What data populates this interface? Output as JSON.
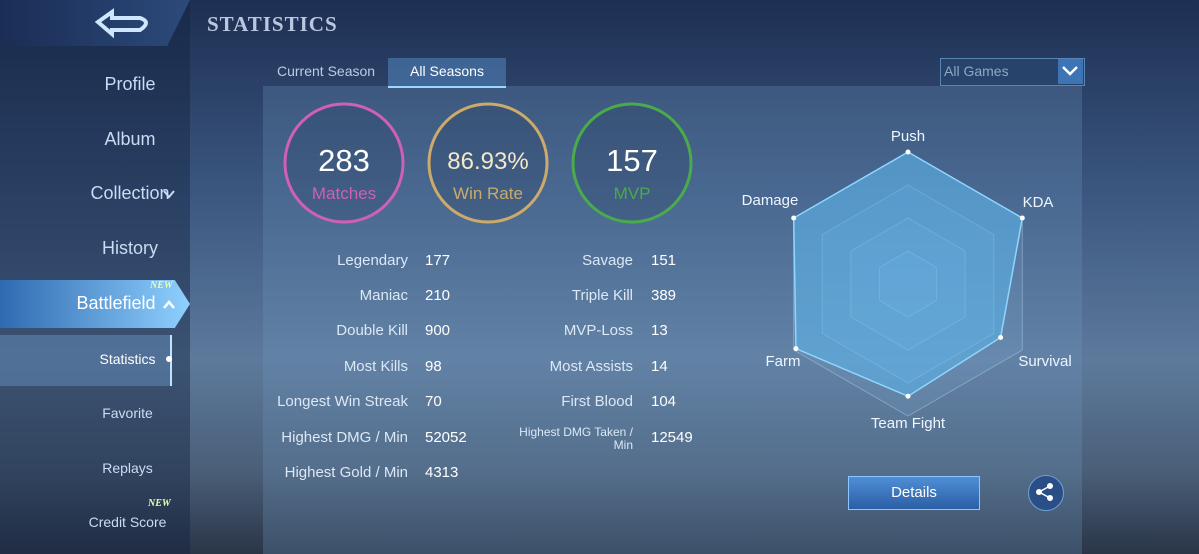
{
  "header": {
    "title": "STATISTICS"
  },
  "sidebar": {
    "items": [
      "Profile",
      "Album",
      "Collection",
      "History",
      "Battlefield"
    ],
    "sub_items": [
      "Statistics",
      "Favorite",
      "Replays",
      "Credit Score"
    ],
    "badge": "NEW"
  },
  "tabs": [
    "Current Season",
    "All Seasons"
  ],
  "filter": "All Games",
  "summary": [
    {
      "value": "283",
      "label": "Matches"
    },
    {
      "value": "86.93%",
      "label": "Win Rate"
    },
    {
      "value": "157",
      "label": "MVP"
    }
  ],
  "stats": {
    "left": [
      [
        "Legendary",
        "177"
      ],
      [
        "Maniac",
        "210"
      ],
      [
        "Double Kill",
        "900"
      ],
      [
        "Most Kills",
        "98"
      ],
      [
        "Longest Win Streak",
        "70"
      ],
      [
        "Highest DMG / Min",
        "52052"
      ],
      [
        "Highest Gold / Min",
        "4313"
      ]
    ],
    "right": [
      [
        "Savage",
        "151"
      ],
      [
        "Triple Kill",
        "389"
      ],
      [
        "MVP-Loss",
        "13"
      ],
      [
        "Most Assists",
        "14"
      ],
      [
        "First Blood",
        "104"
      ],
      [
        "Highest DMG Taken / Min",
        "12549"
      ]
    ]
  },
  "radar": {
    "labels": [
      "Push",
      "KDA",
      "Survival",
      "Team Fight",
      "Farm",
      "Damage"
    ],
    "values": [
      1,
      1,
      0.81,
      0.85,
      0.98,
      1
    ]
  },
  "buttons": {
    "details": "Details"
  }
}
